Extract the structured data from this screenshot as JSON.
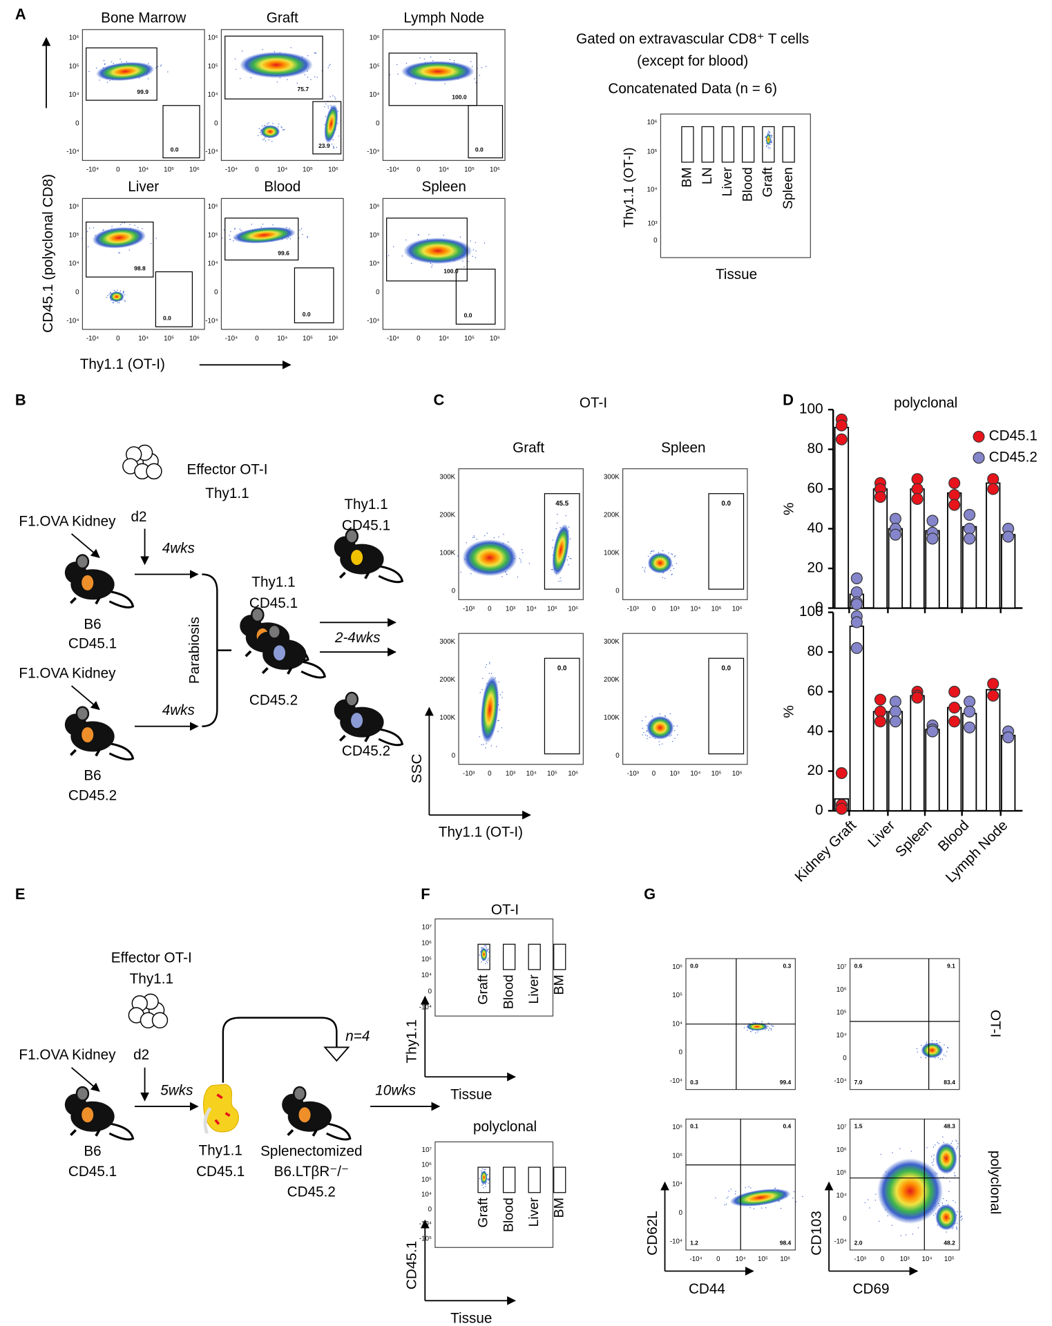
{
  "panel_labels": [
    "A",
    "B",
    "C",
    "D",
    "E",
    "F",
    "G"
  ],
  "panel_a": {
    "plots": [
      {
        "title": "Bone Marrow",
        "gates": [
          "99.9",
          "0.0"
        ]
      },
      {
        "title": "Graft",
        "gates": [
          "75.7",
          "23.9"
        ]
      },
      {
        "title": "Lymph Node",
        "gates": [
          "100.0",
          "0.0"
        ]
      },
      {
        "title": "Liver",
        "gates": [
          "98.8",
          "0.0"
        ]
      },
      {
        "title": "Blood",
        "gates": [
          "99.6",
          "0.0"
        ]
      },
      {
        "title": "Spleen",
        "gates": [
          "100.0",
          "0.0"
        ]
      }
    ],
    "y_label": "CD45.1 (polyclonal CD8)",
    "x_label": "Thy1.1 (OT-I)",
    "yticks": [
      "10⁶",
      "10⁵",
      "10⁴",
      "0",
      "-10⁴"
    ],
    "xticks": [
      "-10⁴",
      "0",
      "10⁴",
      "10⁵",
      "10⁶"
    ],
    "note_lines": [
      "Gated on extravascular CD8⁺ T cells",
      "(except for blood)"
    ],
    "concat_title": "Concatenated Data (n = 6)",
    "concat": {
      "y_label": "Thy1.1 (OT-I)",
      "x_label": "Tissue",
      "categories": [
        "BM",
        "LN",
        "Liver",
        "Blood",
        "Graft",
        "Spleen"
      ],
      "yticks": [
        "10⁶",
        "10⁵",
        "10⁴",
        "10³",
        "0"
      ]
    }
  },
  "panel_b": {
    "cells_label": "Effector OT-I",
    "cells_marker": "Thy1.1",
    "day": "d2",
    "donor_top": "F1.OVA Kidney",
    "host_top": "B6",
    "host_top_marker": "CD45.1",
    "time_top": "4wks",
    "procedure": "Parabiosis",
    "donor_bottom": "F1.OVA Kidney",
    "host_bottom": "B6",
    "host_bottom_marker": "CD45.2",
    "time_bottom": "4wks",
    "pair_markers": [
      "Thy1.1",
      "CD45.1",
      "CD45.2"
    ],
    "time_after": "2-4wks",
    "out_top_markers": [
      "Thy1.1",
      "CD45.1"
    ],
    "out_bottom_marker": "CD45.2"
  },
  "panel_c": {
    "title": "OT-I",
    "columns": [
      "Graft",
      "Spleen"
    ],
    "gates": [
      "45.5",
      "0.0",
      "0.0",
      "0.0"
    ],
    "yticks": [
      "300K",
      "200K",
      "100K",
      "0"
    ],
    "xticks": [
      "-10³",
      "0",
      "10³",
      "10⁴",
      "10⁵",
      "10⁶"
    ],
    "y_label": "SSC",
    "x_label_marker": "Thy1.1",
    "x_label_rest": "(OT-I)"
  },
  "panel_d": {
    "type": "bar",
    "title": "polyclonal",
    "y_label": "%",
    "ylim": [
      0,
      100
    ],
    "yticks": [
      0,
      20,
      40,
      60,
      80,
      100
    ],
    "categories": [
      "Kidney Graft",
      "Liver",
      "Spleen",
      "Blood",
      "Lymph Node"
    ],
    "series": [
      {
        "name": "CD45.1",
        "color": "#e8141c"
      },
      {
        "name": "CD45.2",
        "color": "#8585cc"
      }
    ],
    "plots": [
      {
        "values": [
          [
            91,
            60,
            60,
            58,
            63
          ],
          [
            7,
            40,
            39,
            41,
            37
          ]
        ],
        "points": [
          [
            [
              95,
              92,
              85
            ],
            [
              63,
              60,
              56
            ],
            [
              65,
              60,
              55
            ],
            [
              63,
              57,
              52
            ],
            [
              65,
              60
            ]
          ],
          [
            [
              15,
              8,
              3,
              2
            ],
            [
              45,
              40,
              37
            ],
            [
              44,
              38,
              35
            ],
            [
              47,
              40,
              35
            ],
            [
              40,
              36
            ]
          ]
        ]
      },
      {
        "values": [
          [
            6,
            50,
            58,
            52,
            61
          ],
          [
            93,
            50,
            41,
            49,
            38
          ]
        ],
        "points": [
          [
            [
              19,
              3,
              1
            ],
            [
              56,
              50,
              45
            ],
            [
              60,
              58,
              57
            ],
            [
              60,
              52,
              45
            ],
            [
              64,
              58
            ]
          ],
          [
            [
              98,
              95,
              82
            ],
            [
              55,
              50,
              45
            ],
            [
              43,
              41,
              40
            ],
            [
              55,
              50,
              42
            ],
            [
              40,
              37
            ]
          ]
        ]
      }
    ]
  },
  "panel_e": {
    "cells_label": "Effector OT-I",
    "cells_marker": "Thy1.1",
    "day": "d2",
    "donor": "F1.OVA Kidney",
    "host": "B6",
    "host_marker": "CD45.1",
    "time_first": "5wks",
    "kidney_markers": [
      "Thy1.1",
      "CD45.1"
    ],
    "repeat": "n=4",
    "recipient": [
      "Splenectomized",
      "B6.LTβR⁻/⁻",
      "CD45.2"
    ],
    "time_second": "10wks"
  },
  "panel_f": {
    "categories": [
      "Graft",
      "Blood",
      "Liver",
      "BM"
    ],
    "x_label": "Tissue",
    "plots": [
      {
        "title": "OT-I",
        "y_label": "Thy1.1",
        "yticks": [
          "10⁷",
          "10⁶",
          "10⁵",
          "10⁴",
          "0",
          "-10⁴"
        ]
      },
      {
        "title": "polyclonal",
        "y_label": "CD45.1",
        "yticks": [
          "10⁷",
          "10⁶",
          "10⁵",
          "10⁴",
          "0",
          "-10⁴",
          "-10⁵"
        ]
      }
    ]
  },
  "panel_g": {
    "rows": [
      "OT-I",
      "polyclonal"
    ],
    "columns": [
      {
        "y_label": "CD62L",
        "x_label": "CD44",
        "yticks": [
          "10⁶",
          "10⁵",
          "10⁴",
          "0",
          "-10⁴"
        ],
        "xticks": [
          "-10⁴",
          "0",
          "10⁴",
          "10⁵",
          "10⁶"
        ]
      },
      {
        "y_label": "CD103",
        "x_label": "CD69",
        "yticks": [
          "10⁷",
          "10⁶",
          "10⁵",
          "10⁴",
          "0",
          "-10⁴"
        ],
        "xticks": [
          "-10³",
          "0",
          "10³",
          "10⁴",
          "10⁵"
        ]
      }
    ],
    "plots": [
      {
        "quadrants": [
          "0.0",
          "0.3",
          "0.3",
          "99.4"
        ]
      },
      {
        "quadrants": [
          "0.6",
          "9.1",
          "7.0",
          "83.4"
        ]
      },
      {
        "quadrants": [
          "0.1",
          "0.4",
          "1.2",
          "98.4"
        ]
      },
      {
        "quadrants": [
          "1.5",
          "48.3",
          "2.0",
          "48.2"
        ]
      }
    ]
  }
}
